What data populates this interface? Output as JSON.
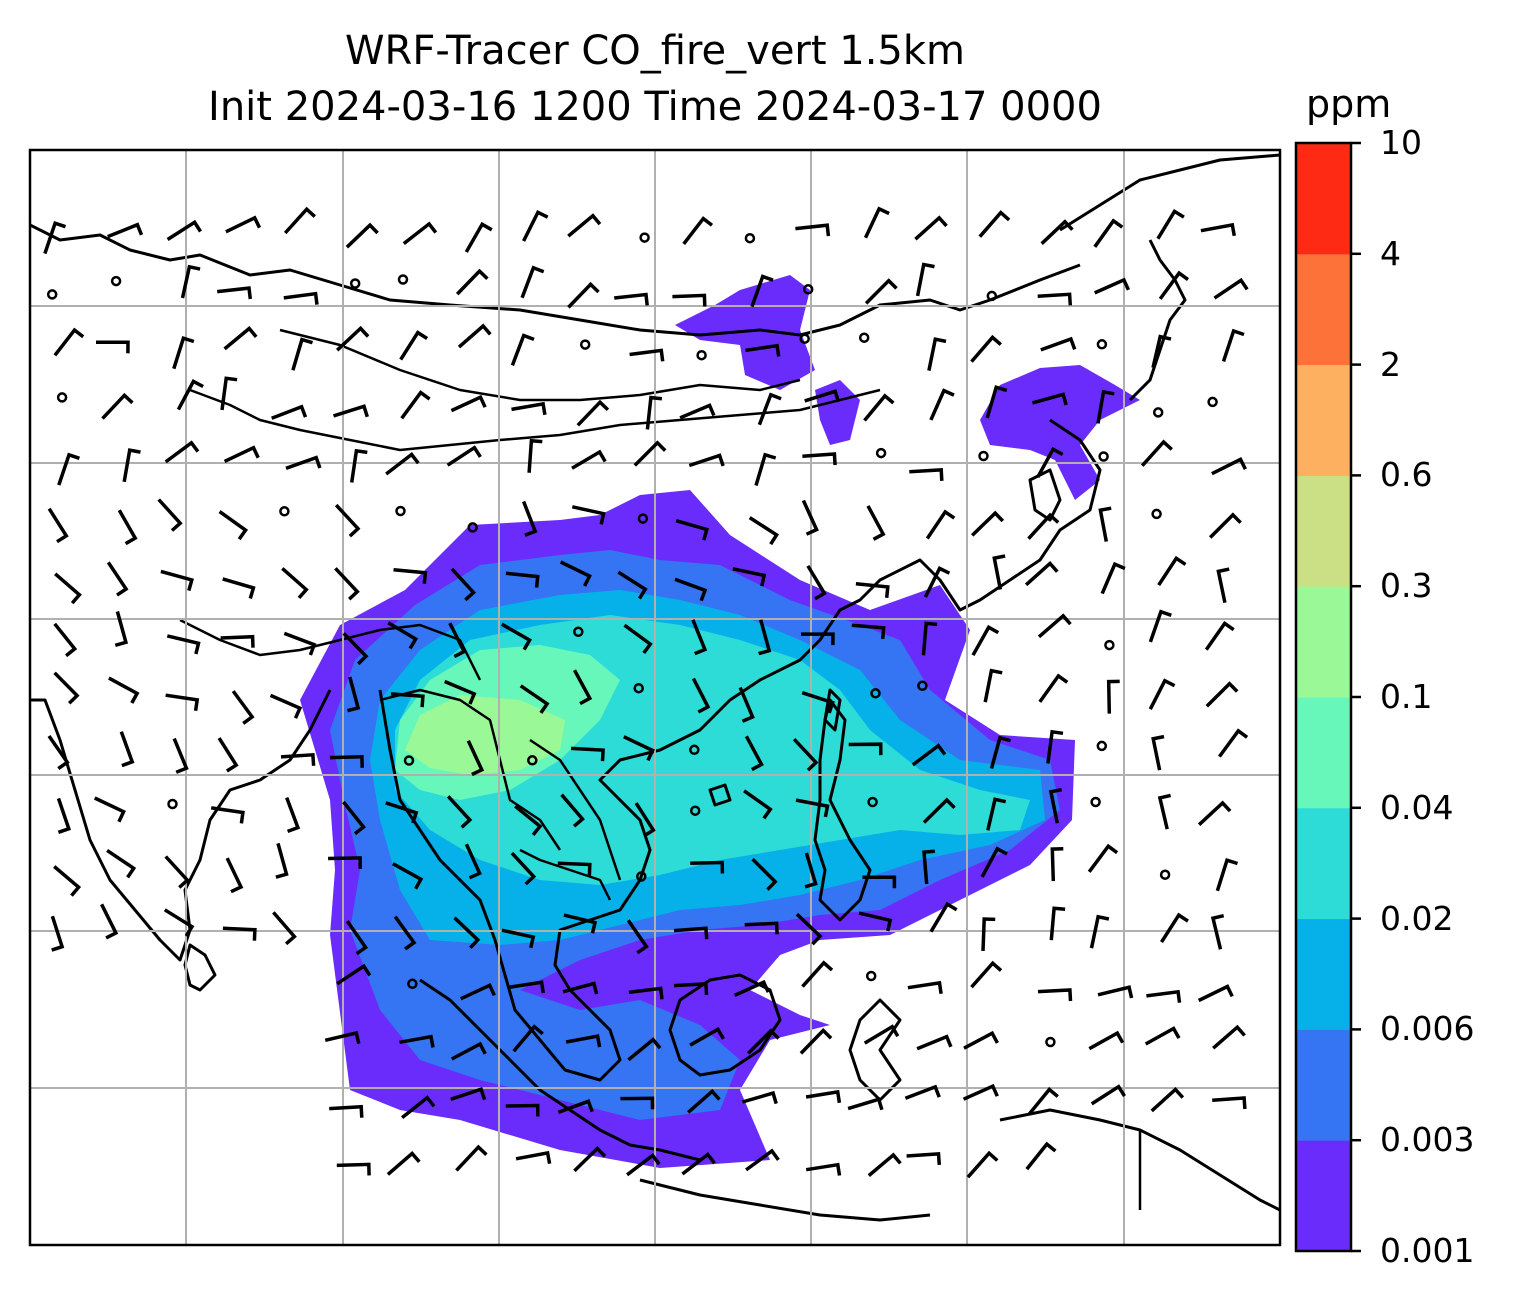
{
  "title": {
    "line1": "WRF-Tracer CO_fire_vert 1.5km",
    "line2": "Init 2024-03-16 1200 Time 2024-03-17 0000"
  },
  "colorbar": {
    "unit": "ppm",
    "levels": [
      "0.001",
      "0.003",
      "0.006",
      "0.02",
      "0.04",
      "0.1",
      "0.3",
      "0.6",
      "2",
      "4",
      "10"
    ],
    "colors": [
      "#6a2cfa",
      "#3574f2",
      "#06b1ea",
      "#2ddcd6",
      "#68f7ba",
      "#9bf897",
      "#cbe085",
      "#fdb060",
      "#fd7239",
      "#ff2a14"
    ]
  },
  "map": {
    "gridlines": true,
    "features": [
      "coastlines",
      "country-borders",
      "gridlines",
      "wind-barbs",
      "tracer-concentration"
    ]
  }
}
